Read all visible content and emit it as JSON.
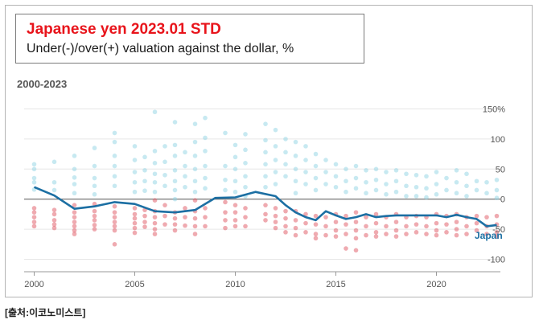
{
  "header": {
    "title": "Japanese yen 2023.01 STD",
    "subtitle": "Under(-)/over(+) valuation against the dollar, %"
  },
  "period_label": "2000-2023",
  "source_label": "[출처:이코노미스트]",
  "colors": {
    "line": "#1c6fa3",
    "over_dots": "#8fd3e4",
    "under_dots": "#e05562",
    "grid": "#e6e6e6",
    "zero_line": "#555555",
    "title": "#e8141b"
  },
  "chart_data": {
    "type": "line",
    "title": "Japanese yen 2023.01 STD",
    "subtitle": "Under(-)/over(+) valuation against the dollar, %",
    "xlabel": "",
    "ylabel": "",
    "xlim": [
      1999.5,
      2023.5
    ],
    "ylim": [
      -110,
      160
    ],
    "x_ticks": [
      2000,
      2005,
      2010,
      2015,
      2020
    ],
    "x_tick_labels": [
      "2000",
      "2005",
      "2010",
      "2015",
      "2020"
    ],
    "y_ticks": [
      150,
      100,
      50,
      0,
      -50,
      -100
    ],
    "y_tick_labels": [
      "150%",
      "100",
      "50",
      "0",
      "-50",
      "-100"
    ],
    "grid": true,
    "series": [
      {
        "name": "Japan",
        "x": [
          2000.0,
          2001.0,
          2002.0,
          2003.0,
          2004.0,
          2005.0,
          2006.0,
          2007.0,
          2008.0,
          2009.0,
          2010.0,
          2011.0,
          2012.0,
          2012.5,
          2013.0,
          2013.5,
          2014.0,
          2014.5,
          2015.0,
          2015.5,
          2016.0,
          2016.5,
          2017.0,
          2017.5,
          2018.0,
          2018.5,
          2019.0,
          2019.5,
          2020.0,
          2020.5,
          2021.0,
          2021.5,
          2022.0,
          2022.5,
          2023.0
        ],
        "y": [
          20,
          6,
          -16,
          -12,
          -5,
          -8,
          -20,
          -22,
          -18,
          2,
          3,
          12,
          5,
          -10,
          -22,
          -30,
          -35,
          -20,
          -27,
          -33,
          -30,
          -25,
          -30,
          -28,
          -27,
          -27,
          -27,
          -27,
          -27,
          -30,
          -26,
          -30,
          -33,
          -45,
          -43
        ]
      }
    ],
    "annotations": [
      {
        "text": "Japan",
        "x": 2021.9,
        "y": -66
      }
    ],
    "background_dots": {
      "description_values": "valuations of other currencies per release",
      "points": [
        [
          2000,
          58
        ],
        [
          2000,
          50
        ],
        [
          2000,
          35
        ],
        [
          2000,
          28
        ],
        [
          2000,
          16
        ],
        [
          2000,
          -15
        ],
        [
          2000,
          -22
        ],
        [
          2000,
          -30
        ],
        [
          2000,
          -38
        ],
        [
          2000,
          -45
        ],
        [
          2001,
          62
        ],
        [
          2001,
          28
        ],
        [
          2001,
          15
        ],
        [
          2001,
          -18
        ],
        [
          2001,
          -25
        ],
        [
          2001,
          -35
        ],
        [
          2001,
          -42
        ],
        [
          2001,
          -48
        ],
        [
          2002,
          72
        ],
        [
          2002,
          50
        ],
        [
          2002,
          36
        ],
        [
          2002,
          25
        ],
        [
          2002,
          10
        ],
        [
          2002,
          -10
        ],
        [
          2002,
          -22
        ],
        [
          2002,
          -30
        ],
        [
          2002,
          -38
        ],
        [
          2002,
          -45
        ],
        [
          2002,
          -52
        ],
        [
          2002,
          -58
        ],
        [
          2003,
          85
        ],
        [
          2003,
          55
        ],
        [
          2003,
          35
        ],
        [
          2003,
          22
        ],
        [
          2003,
          8
        ],
        [
          2003,
          -8
        ],
        [
          2003,
          -20
        ],
        [
          2003,
          -28
        ],
        [
          2003,
          -35
        ],
        [
          2003,
          -43
        ],
        [
          2003,
          -50
        ],
        [
          2004,
          110
        ],
        [
          2004,
          95
        ],
        [
          2004,
          72
        ],
        [
          2004,
          55
        ],
        [
          2004,
          38
        ],
        [
          2004,
          22
        ],
        [
          2004,
          -12
        ],
        [
          2004,
          -22
        ],
        [
          2004,
          -30
        ],
        [
          2004,
          -38
        ],
        [
          2004,
          -45
        ],
        [
          2004,
          -52
        ],
        [
          2004,
          -75
        ],
        [
          2005,
          88
        ],
        [
          2005,
          65
        ],
        [
          2005,
          45
        ],
        [
          2005,
          28
        ],
        [
          2005,
          12
        ],
        [
          2005,
          -15
        ],
        [
          2005,
          -25
        ],
        [
          2005,
          -32
        ],
        [
          2005,
          -40
        ],
        [
          2005,
          -48
        ],
        [
          2005,
          -56
        ],
        [
          2005.5,
          70
        ],
        [
          2005.5,
          48
        ],
        [
          2005.5,
          30
        ],
        [
          2005.5,
          14
        ],
        [
          2005.5,
          -18
        ],
        [
          2005.5,
          -28
        ],
        [
          2005.5,
          -38
        ],
        [
          2005.5,
          -46
        ],
        [
          2006,
          145
        ],
        [
          2006,
          80
        ],
        [
          2006,
          60
        ],
        [
          2006,
          42
        ],
        [
          2006,
          28
        ],
        [
          2006,
          12
        ],
        [
          2006,
          -2
        ],
        [
          2006,
          -20
        ],
        [
          2006,
          -30
        ],
        [
          2006,
          -40
        ],
        [
          2006,
          -50
        ],
        [
          2006,
          -58
        ],
        [
          2006.5,
          88
        ],
        [
          2006.5,
          62
        ],
        [
          2006.5,
          40
        ],
        [
          2006.5,
          22
        ],
        [
          2006.5,
          -10
        ],
        [
          2006.5,
          -28
        ],
        [
          2006.5,
          -42
        ],
        [
          2007,
          128
        ],
        [
          2007,
          90
        ],
        [
          2007,
          72
        ],
        [
          2007,
          48
        ],
        [
          2007,
          30
        ],
        [
          2007,
          15
        ],
        [
          2007,
          0
        ],
        [
          2007,
          -22
        ],
        [
          2007,
          -32
        ],
        [
          2007,
          -42
        ],
        [
          2007,
          -52
        ],
        [
          2007.5,
          78
        ],
        [
          2007.5,
          55
        ],
        [
          2007.5,
          38
        ],
        [
          2007.5,
          20
        ],
        [
          2007.5,
          -15
        ],
        [
          2007.5,
          -30
        ],
        [
          2007.5,
          -44
        ],
        [
          2008,
          125
        ],
        [
          2008,
          95
        ],
        [
          2008,
          72
        ],
        [
          2008,
          50
        ],
        [
          2008,
          30
        ],
        [
          2008,
          12
        ],
        [
          2008,
          -2
        ],
        [
          2008,
          -20
        ],
        [
          2008,
          -32
        ],
        [
          2008,
          -45
        ],
        [
          2008,
          -58
        ],
        [
          2008.5,
          135
        ],
        [
          2008.5,
          102
        ],
        [
          2008.5,
          80
        ],
        [
          2008.5,
          55
        ],
        [
          2008.5,
          35
        ],
        [
          2008.5,
          18
        ],
        [
          2008.5,
          -15
        ],
        [
          2008.5,
          -30
        ],
        [
          2008.5,
          -45
        ],
        [
          2009.5,
          110
        ],
        [
          2009.5,
          55
        ],
        [
          2009.5,
          32
        ],
        [
          2009.5,
          15
        ],
        [
          2009.5,
          -5
        ],
        [
          2009.5,
          -22
        ],
        [
          2009.5,
          -35
        ],
        [
          2009.5,
          -48
        ],
        [
          2010,
          90
        ],
        [
          2010,
          70
        ],
        [
          2010,
          50
        ],
        [
          2010,
          30
        ],
        [
          2010,
          12
        ],
        [
          2010,
          -10
        ],
        [
          2010,
          -22
        ],
        [
          2010,
          -35
        ],
        [
          2010,
          -45
        ],
        [
          2010.5,
          108
        ],
        [
          2010.5,
          82
        ],
        [
          2010.5,
          60
        ],
        [
          2010.5,
          38
        ],
        [
          2010.5,
          20
        ],
        [
          2010.5,
          5
        ],
        [
          2010.5,
          -15
        ],
        [
          2010.5,
          -30
        ],
        [
          2010.5,
          -45
        ],
        [
          2011.5,
          125
        ],
        [
          2011.5,
          98
        ],
        [
          2011.5,
          78
        ],
        [
          2011.5,
          58
        ],
        [
          2011.5,
          38
        ],
        [
          2011.5,
          20
        ],
        [
          2011.5,
          -10
        ],
        [
          2011.5,
          -25
        ],
        [
          2011.5,
          -35
        ],
        [
          2012,
          115
        ],
        [
          2012,
          88
        ],
        [
          2012,
          65
        ],
        [
          2012,
          45
        ],
        [
          2012,
          25
        ],
        [
          2012,
          -15
        ],
        [
          2012,
          -28
        ],
        [
          2012,
          -38
        ],
        [
          2012,
          -48
        ],
        [
          2012.5,
          100
        ],
        [
          2012.5,
          78
        ],
        [
          2012.5,
          58
        ],
        [
          2012.5,
          38
        ],
        [
          2012.5,
          -20
        ],
        [
          2012.5,
          -32
        ],
        [
          2012.5,
          -45
        ],
        [
          2012.5,
          -55
        ],
        [
          2013,
          95
        ],
        [
          2013,
          72
        ],
        [
          2013,
          50
        ],
        [
          2013,
          30
        ],
        [
          2013,
          10
        ],
        [
          2013,
          -20
        ],
        [
          2013,
          -35
        ],
        [
          2013,
          -48
        ],
        [
          2013,
          -60
        ],
        [
          2013.5,
          88
        ],
        [
          2013.5,
          65
        ],
        [
          2013.5,
          45
        ],
        [
          2013.5,
          25
        ],
        [
          2013.5,
          -25
        ],
        [
          2013.5,
          -40
        ],
        [
          2013.5,
          -55
        ],
        [
          2014,
          75
        ],
        [
          2014,
          55
        ],
        [
          2014,
          35
        ],
        [
          2014,
          15
        ],
        [
          2014,
          -28
        ],
        [
          2014,
          -42
        ],
        [
          2014,
          -58
        ],
        [
          2014,
          -65
        ],
        [
          2014.5,
          65
        ],
        [
          2014.5,
          45
        ],
        [
          2014.5,
          25
        ],
        [
          2014.5,
          -30
        ],
        [
          2014.5,
          -45
        ],
        [
          2014.5,
          -60
        ],
        [
          2015,
          58
        ],
        [
          2015,
          38
        ],
        [
          2015,
          20
        ],
        [
          2015,
          -25
        ],
        [
          2015,
          -38
        ],
        [
          2015,
          -52
        ],
        [
          2015,
          -62
        ],
        [
          2015.5,
          50
        ],
        [
          2015.5,
          30
        ],
        [
          2015.5,
          12
        ],
        [
          2015.5,
          -28
        ],
        [
          2015.5,
          -42
        ],
        [
          2015.5,
          -58
        ],
        [
          2015.5,
          -82
        ],
        [
          2016,
          55
        ],
        [
          2016,
          35
        ],
        [
          2016,
          18
        ],
        [
          2016,
          -22
        ],
        [
          2016,
          -38
        ],
        [
          2016,
          -52
        ],
        [
          2016,
          -65
        ],
        [
          2016,
          -85
        ],
        [
          2016.5,
          48
        ],
        [
          2016.5,
          28
        ],
        [
          2016.5,
          10
        ],
        [
          2016.5,
          -30
        ],
        [
          2016.5,
          -45
        ],
        [
          2016.5,
          -60
        ],
        [
          2017,
          50
        ],
        [
          2017,
          32
        ],
        [
          2017,
          15
        ],
        [
          2017,
          -25
        ],
        [
          2017,
          -40
        ],
        [
          2017,
          -55
        ],
        [
          2017,
          -62
        ],
        [
          2017.5,
          45
        ],
        [
          2017.5,
          25
        ],
        [
          2017.5,
          8
        ],
        [
          2017.5,
          -30
        ],
        [
          2017.5,
          -45
        ],
        [
          2017.5,
          -58
        ],
        [
          2018,
          48
        ],
        [
          2018,
          30
        ],
        [
          2018,
          12
        ],
        [
          2018,
          -25
        ],
        [
          2018,
          -38
        ],
        [
          2018,
          -52
        ],
        [
          2018,
          -62
        ],
        [
          2018.5,
          42
        ],
        [
          2018.5,
          22
        ],
        [
          2018.5,
          5
        ],
        [
          2018.5,
          -30
        ],
        [
          2018.5,
          -45
        ],
        [
          2018.5,
          -58
        ],
        [
          2019,
          40
        ],
        [
          2019,
          20
        ],
        [
          2019,
          5
        ],
        [
          2019,
          -28
        ],
        [
          2019,
          -42
        ],
        [
          2019,
          -55
        ],
        [
          2019.5,
          38
        ],
        [
          2019.5,
          18
        ],
        [
          2019.5,
          3
        ],
        [
          2019.5,
          -30
        ],
        [
          2019.5,
          -45
        ],
        [
          2019.5,
          -58
        ],
        [
          2020,
          45
        ],
        [
          2020,
          25
        ],
        [
          2020,
          8
        ],
        [
          2020,
          -25
        ],
        [
          2020,
          -40
        ],
        [
          2020,
          -52
        ],
        [
          2020,
          -60
        ],
        [
          2020.5,
          35
        ],
        [
          2020.5,
          15
        ],
        [
          2020.5,
          -28
        ],
        [
          2020.5,
          -42
        ],
        [
          2020.5,
          -55
        ],
        [
          2021,
          48
        ],
        [
          2021,
          28
        ],
        [
          2021,
          10
        ],
        [
          2021,
          -25
        ],
        [
          2021,
          -38
        ],
        [
          2021,
          -50
        ],
        [
          2021,
          -60
        ],
        [
          2021.5,
          42
        ],
        [
          2021.5,
          22
        ],
        [
          2021.5,
          5
        ],
        [
          2021.5,
          -30
        ],
        [
          2021.5,
          -45
        ],
        [
          2021.5,
          -58
        ],
        [
          2022,
          30
        ],
        [
          2022,
          15
        ],
        [
          2022,
          -28
        ],
        [
          2022,
          -40
        ],
        [
          2022,
          -52
        ],
        [
          2022.5,
          28
        ],
        [
          2022.5,
          10
        ],
        [
          2022.5,
          -30
        ],
        [
          2022.5,
          -45
        ],
        [
          2022.5,
          -58
        ],
        [
          2023,
          32
        ],
        [
          2023,
          15
        ],
        [
          2023,
          2
        ],
        [
          2023,
          -28
        ],
        [
          2023,
          -42
        ],
        [
          2023,
          -55
        ],
        [
          2023,
          -62
        ]
      ]
    }
  }
}
